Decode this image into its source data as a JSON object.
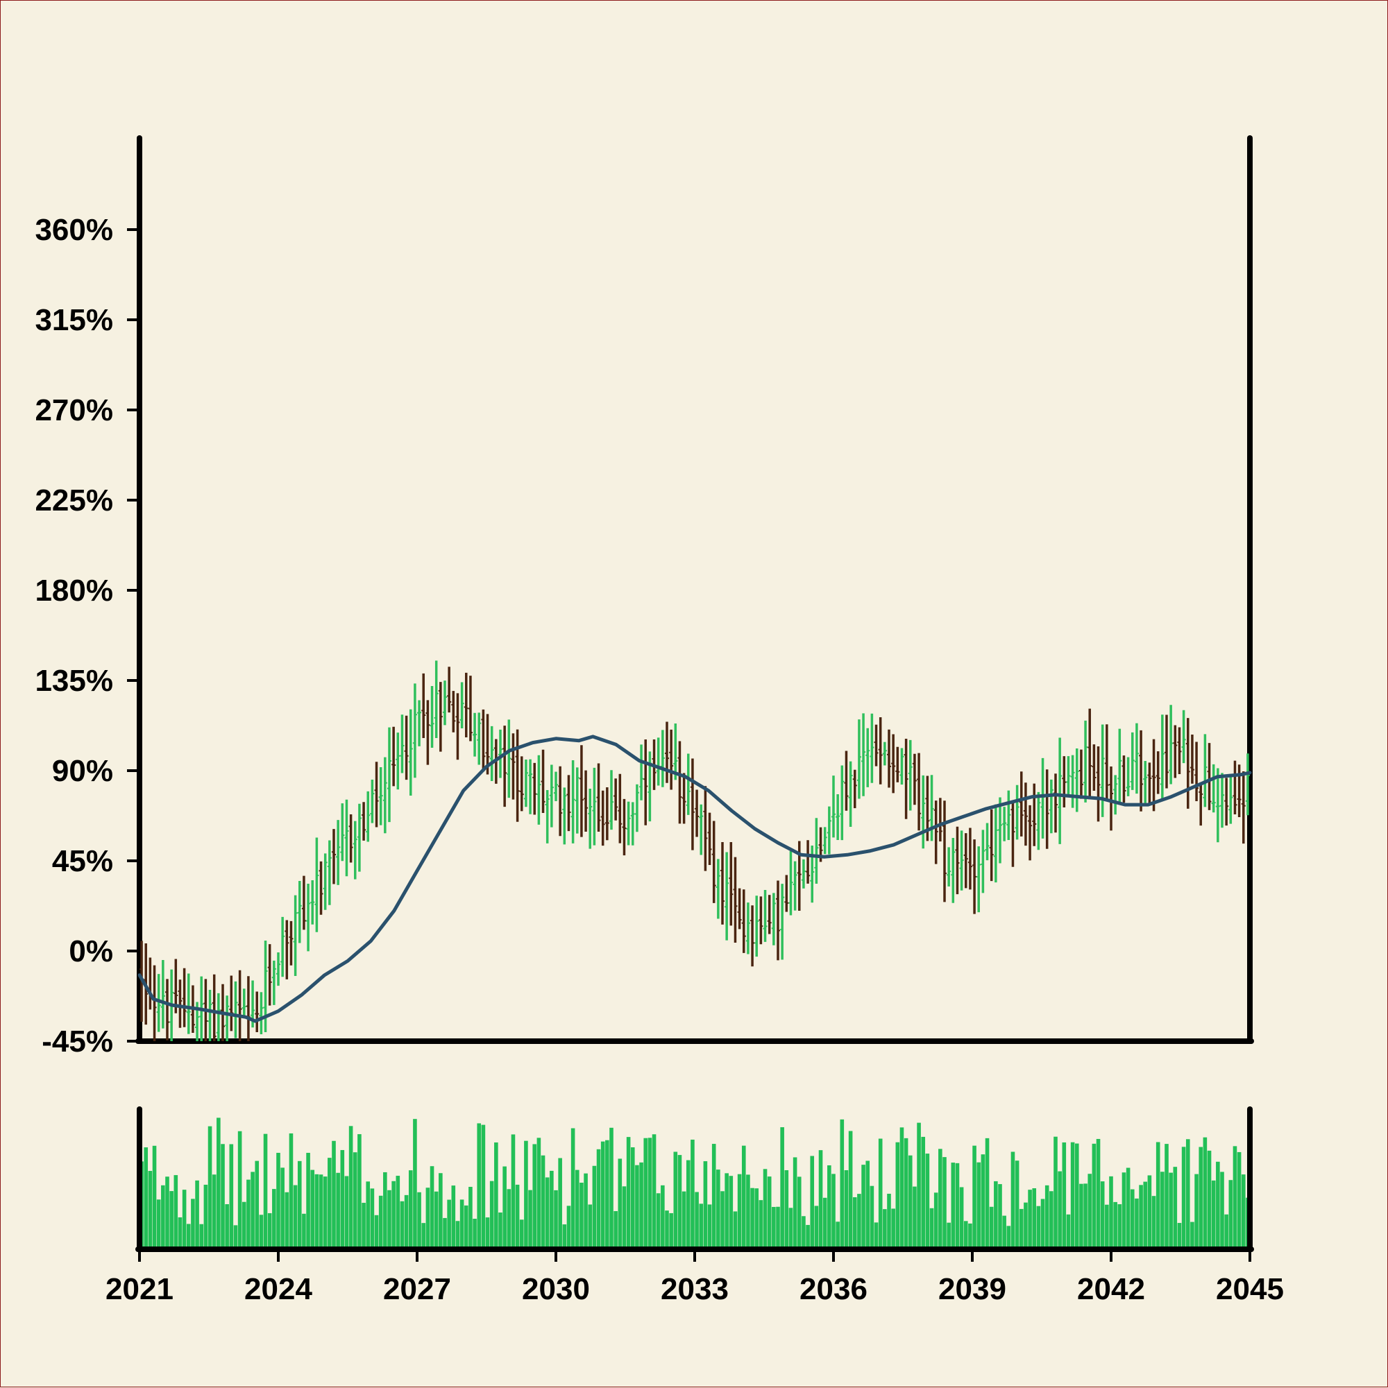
{
  "chart_data": {
    "type": "ohlc",
    "title": "",
    "xlabel": "",
    "ylabel": "",
    "x_range": [
      2021.0,
      2045.0
    ],
    "ylim": [
      -45,
      405
    ],
    "y_ticks": [
      -45,
      0,
      45,
      90,
      135,
      180,
      225,
      270,
      315,
      360
    ],
    "y_tick_labels": [
      "-45%",
      "0%",
      "45%",
      "90%",
      "135%",
      "180%",
      "225%",
      "270%",
      "315%",
      "360%"
    ],
    "x_ticks": [
      2021,
      2024,
      2027,
      2030,
      2033,
      2036,
      2039,
      2042,
      2045
    ],
    "x_tick_labels": [
      "2021",
      "2024",
      "2027",
      "2030",
      "2033",
      "2036",
      "2039",
      "2042",
      "2045"
    ],
    "price_path": [
      [
        2021.0,
        -10
      ],
      [
        2021.5,
        -30
      ],
      [
        2022.0,
        -28
      ],
      [
        2022.5,
        -35
      ],
      [
        2023.0,
        -30
      ],
      [
        2023.5,
        -38
      ],
      [
        2023.7,
        -20
      ],
      [
        2024.0,
        0
      ],
      [
        2024.5,
        20
      ],
      [
        2025.0,
        35
      ],
      [
        2025.5,
        55
      ],
      [
        2026.0,
        70
      ],
      [
        2026.5,
        90
      ],
      [
        2027.0,
        115
      ],
      [
        2027.5,
        125
      ],
      [
        2028.0,
        120
      ],
      [
        2028.5,
        100
      ],
      [
        2029.0,
        90
      ],
      [
        2029.5,
        80
      ],
      [
        2030.0,
        75
      ],
      [
        2030.5,
        80
      ],
      [
        2031.0,
        70
      ],
      [
        2031.5,
        65
      ],
      [
        2032.0,
        85
      ],
      [
        2032.5,
        90
      ],
      [
        2033.0,
        75
      ],
      [
        2033.3,
        45
      ],
      [
        2033.7,
        25
      ],
      [
        2034.0,
        15
      ],
      [
        2034.5,
        10
      ],
      [
        2035.0,
        25
      ],
      [
        2035.5,
        45
      ],
      [
        2036.0,
        70
      ],
      [
        2036.5,
        90
      ],
      [
        2037.0,
        105
      ],
      [
        2037.5,
        90
      ],
      [
        2038.0,
        70
      ],
      [
        2038.5,
        40
      ],
      [
        2039.0,
        45
      ],
      [
        2039.5,
        55
      ],
      [
        2040.0,
        65
      ],
      [
        2040.5,
        75
      ],
      [
        2041.0,
        80
      ],
      [
        2041.5,
        95
      ],
      [
        2042.0,
        85
      ],
      [
        2042.5,
        90
      ],
      [
        2043.0,
        95
      ],
      [
        2043.5,
        100
      ],
      [
        2044.0,
        85
      ],
      [
        2044.5,
        78
      ],
      [
        2045.0,
        82
      ]
    ],
    "moving_average": [
      [
        2021.0,
        -12
      ],
      [
        2021.3,
        -24
      ],
      [
        2021.7,
        -27
      ],
      [
        2022.3,
        -29
      ],
      [
        2022.8,
        -31
      ],
      [
        2023.3,
        -33
      ],
      [
        2023.5,
        -35
      ],
      [
        2024.0,
        -30
      ],
      [
        2024.5,
        -22
      ],
      [
        2025.0,
        -12
      ],
      [
        2025.5,
        -5
      ],
      [
        2026.0,
        5
      ],
      [
        2026.5,
        20
      ],
      [
        2027.0,
        40
      ],
      [
        2027.5,
        60
      ],
      [
        2028.0,
        80
      ],
      [
        2028.5,
        92
      ],
      [
        2029.0,
        100
      ],
      [
        2029.5,
        104
      ],
      [
        2030.0,
        106
      ],
      [
        2030.5,
        105
      ],
      [
        2030.8,
        107
      ],
      [
        2031.3,
        103
      ],
      [
        2031.8,
        95
      ],
      [
        2032.3,
        91
      ],
      [
        2032.8,
        87
      ],
      [
        2033.3,
        80
      ],
      [
        2033.8,
        70
      ],
      [
        2034.3,
        61
      ],
      [
        2034.8,
        54
      ],
      [
        2035.3,
        48
      ],
      [
        2035.8,
        47
      ],
      [
        2036.3,
        48
      ],
      [
        2036.8,
        50
      ],
      [
        2037.3,
        53
      ],
      [
        2037.8,
        58
      ],
      [
        2038.3,
        63
      ],
      [
        2038.8,
        67
      ],
      [
        2039.3,
        71
      ],
      [
        2039.8,
        74
      ],
      [
        2040.3,
        77
      ],
      [
        2040.8,
        78
      ],
      [
        2041.3,
        77
      ],
      [
        2041.8,
        76
      ],
      [
        2042.3,
        73
      ],
      [
        2042.8,
        73
      ],
      [
        2043.3,
        77
      ],
      [
        2043.8,
        82
      ],
      [
        2044.3,
        87
      ],
      [
        2044.8,
        88
      ],
      [
        2045.0,
        89
      ]
    ],
    "volume_range": [
      0,
      100
    ],
    "colors": {
      "up": "#2fbf5c",
      "down": "#4a2511",
      "moving_average": "#2a516d",
      "volume": "#22bf57",
      "axis": "#000000",
      "background": "#f6f1e1"
    }
  }
}
